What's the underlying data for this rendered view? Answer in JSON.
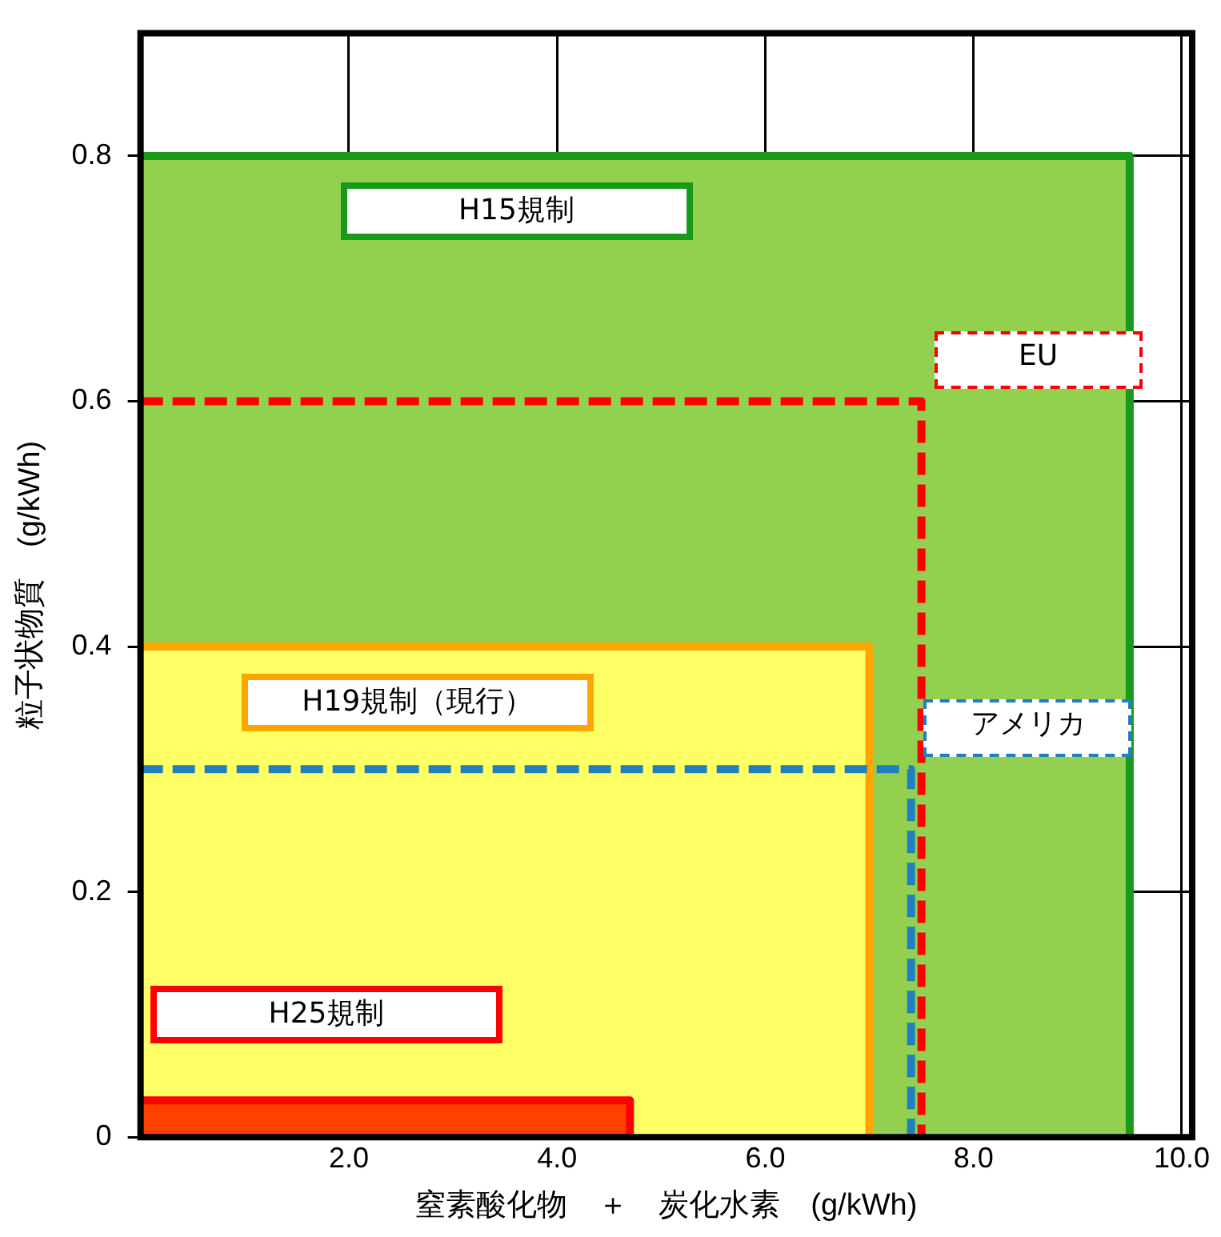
{
  "chart_data": {
    "type": "area",
    "xlabel": "窒素酸化物　＋　炭化水素　(g/kWh)",
    "ylabel": "粒子状物質　(g/kWh)",
    "xlim": [
      0,
      10.1
    ],
    "ylim": [
      0,
      0.9
    ],
    "xticks": [
      {
        "value": 2,
        "label": "2.0"
      },
      {
        "value": 4,
        "label": "4.0"
      },
      {
        "value": 6,
        "label": "6.0"
      },
      {
        "value": 8,
        "label": "8.0"
      },
      {
        "value": 10,
        "label": "10.0"
      }
    ],
    "yticks": [
      0,
      0.2,
      0.4,
      0.6,
      0.8
    ],
    "grid": true,
    "legend": false,
    "series": [
      {
        "name": "H15規制",
        "color": "#92d050",
        "x": [
          0,
          9.5,
          9.5
        ],
        "values": [
          0.8,
          0.8,
          0
        ]
      },
      {
        "name": "H19規制（現行）",
        "color": "#ffff66",
        "x": [
          0,
          7,
          7
        ],
        "values": [
          0.4,
          0.4,
          0
        ]
      },
      {
        "name": "H25規制",
        "color": "#ff4000",
        "x": [
          0,
          4.7,
          4.7
        ],
        "values": [
          0.03,
          0.03,
          0
        ]
      },
      {
        "name": "EU",
        "type": "line",
        "color": "#ff0000",
        "line_style": "dashed",
        "x": [
          0,
          7.5,
          7.5
        ],
        "values": [
          0.6,
          0.6,
          0
        ]
      },
      {
        "name": "アメリカ",
        "type": "line",
        "color": "#1f7fc0",
        "line_style": "dashed",
        "x": [
          0,
          7.4,
          7.4
        ],
        "values": [
          0.3,
          0.3,
          0
        ]
      }
    ]
  }
}
